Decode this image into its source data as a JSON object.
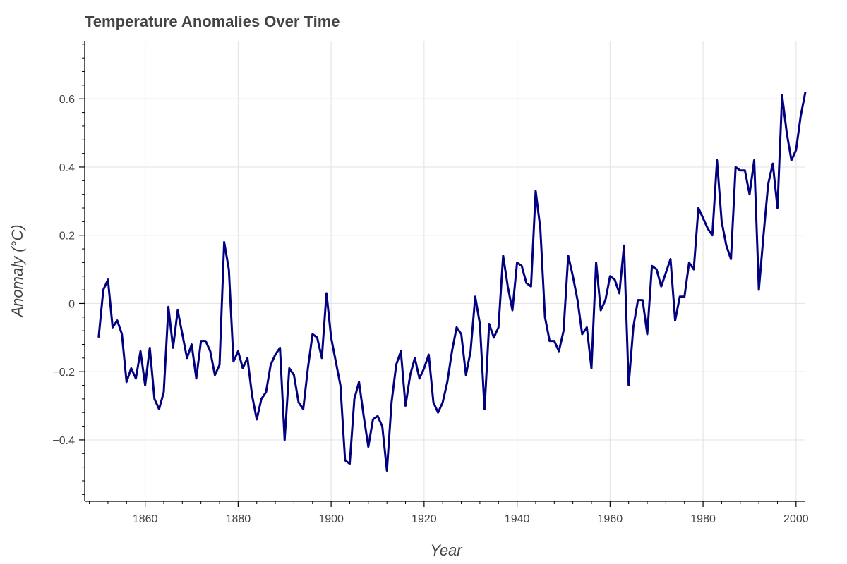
{
  "chart_data": {
    "type": "line",
    "title": "Temperature Anomalies Over Time",
    "xlabel": "Year",
    "ylabel": "Anomaly (°C)",
    "xlim": [
      1847,
      2002
    ],
    "ylim": [
      -0.58,
      0.77
    ],
    "x_ticks": [
      {
        "value": 1860,
        "label": "1860"
      },
      {
        "value": 1880,
        "label": "1880"
      },
      {
        "value": 1900,
        "label": "1900"
      },
      {
        "value": 1920,
        "label": "1920"
      },
      {
        "value": 1940,
        "label": "1940"
      },
      {
        "value": 1960,
        "label": "1960"
      },
      {
        "value": 1980,
        "label": "1980"
      },
      {
        "value": 2000,
        "label": "2000"
      }
    ],
    "y_ticks": [
      {
        "value": -0.4,
        "label": "−0.4"
      },
      {
        "value": -0.2,
        "label": "−0.2"
      },
      {
        "value": 0,
        "label": "0"
      },
      {
        "value": 0.2,
        "label": "0.2"
      },
      {
        "value": 0.4,
        "label": "0.4"
      },
      {
        "value": 0.6,
        "label": "0.6"
      }
    ],
    "grid": true,
    "line_color": "#000080",
    "series": [
      {
        "x": [
          1850,
          1851,
          1852,
          1853,
          1854,
          1855,
          1856,
          1857,
          1858,
          1859,
          1860,
          1861,
          1862,
          1863,
          1864,
          1865,
          1866,
          1867,
          1868,
          1869,
          1870,
          1871,
          1872,
          1873,
          1874,
          1875,
          1876,
          1877,
          1878,
          1879,
          1880,
          1881,
          1882,
          1883,
          1884,
          1885,
          1886,
          1887,
          1888,
          1889,
          1890,
          1891,
          1892,
          1893,
          1894,
          1895,
          1896,
          1897,
          1898,
          1899,
          1900,
          1901,
          1902,
          1903,
          1904,
          1905,
          1906,
          1907,
          1908,
          1909,
          1910,
          1911,
          1912,
          1913,
          1914,
          1915,
          1916,
          1917,
          1918,
          1919,
          1920,
          1921,
          1922,
          1923,
          1924,
          1925,
          1926,
          1927,
          1928,
          1929,
          1930,
          1931,
          1932,
          1933,
          1934,
          1935,
          1936,
          1937,
          1938,
          1939,
          1940,
          1941,
          1942,
          1943,
          1944,
          1945,
          1946,
          1947,
          1948,
          1949,
          1950,
          1951,
          1952,
          1953,
          1954,
          1955,
          1956,
          1957,
          1958,
          1959,
          1960,
          1961,
          1962,
          1963,
          1964,
          1965,
          1966,
          1967,
          1968,
          1969,
          1970,
          1971,
          1972,
          1973,
          1974,
          1975,
          1976,
          1977,
          1978,
          1979,
          1980,
          1981,
          1982,
          1983,
          1984,
          1985,
          1986,
          1987,
          1988,
          1989,
          1990,
          1991,
          1992,
          1993,
          1994,
          1995,
          1996,
          1997,
          1998,
          1999,
          2000,
          2001,
          2002
        ],
        "values": [
          -0.1,
          0.04,
          0.07,
          -0.07,
          -0.05,
          -0.09,
          -0.23,
          -0.19,
          -0.22,
          -0.14,
          -0.24,
          -0.13,
          -0.28,
          -0.31,
          -0.26,
          -0.01,
          -0.13,
          -0.02,
          -0.09,
          -0.16,
          -0.12,
          -0.22,
          -0.11,
          -0.11,
          -0.14,
          -0.21,
          -0.18,
          0.18,
          0.1,
          -0.17,
          -0.14,
          -0.19,
          -0.16,
          -0.27,
          -0.34,
          -0.28,
          -0.26,
          -0.18,
          -0.15,
          -0.13,
          -0.4,
          -0.19,
          -0.21,
          -0.29,
          -0.31,
          -0.19,
          -0.09,
          -0.1,
          -0.16,
          0.03,
          -0.1,
          -0.17,
          -0.24,
          -0.46,
          -0.47,
          -0.28,
          -0.23,
          -0.33,
          -0.42,
          -0.34,
          -0.33,
          -0.36,
          -0.49,
          -0.29,
          -0.18,
          -0.14,
          -0.3,
          -0.21,
          -0.16,
          -0.22,
          -0.19,
          -0.15,
          -0.29,
          -0.32,
          -0.29,
          -0.23,
          -0.14,
          -0.07,
          -0.09,
          -0.21,
          -0.14,
          0.02,
          -0.06,
          -0.31,
          -0.06,
          -0.1,
          -0.07,
          0.14,
          0.05,
          -0.02,
          0.12,
          0.11,
          0.06,
          0.05,
          0.33,
          0.22,
          -0.04,
          -0.11,
          -0.11,
          -0.14,
          -0.08,
          0.14,
          0.08,
          0.01,
          -0.09,
          -0.07,
          -0.19,
          0.12,
          -0.02,
          0.01,
          0.08,
          0.07,
          0.03,
          0.17,
          -0.24,
          -0.07,
          0.01,
          0.01,
          -0.09,
          0.11,
          0.1,
          0.05,
          0.09,
          0.13,
          -0.05,
          0.02,
          0.02,
          0.12,
          0.1,
          0.28,
          0.25,
          0.22,
          0.2,
          0.42,
          0.24,
          0.17,
          0.13,
          0.4,
          0.39,
          0.39,
          0.32,
          0.42,
          0.04,
          0.2,
          0.35,
          0.41,
          0.28,
          0.61,
          0.5,
          0.42,
          0.45,
          0.55,
          0.62
        ]
      }
    ]
  }
}
